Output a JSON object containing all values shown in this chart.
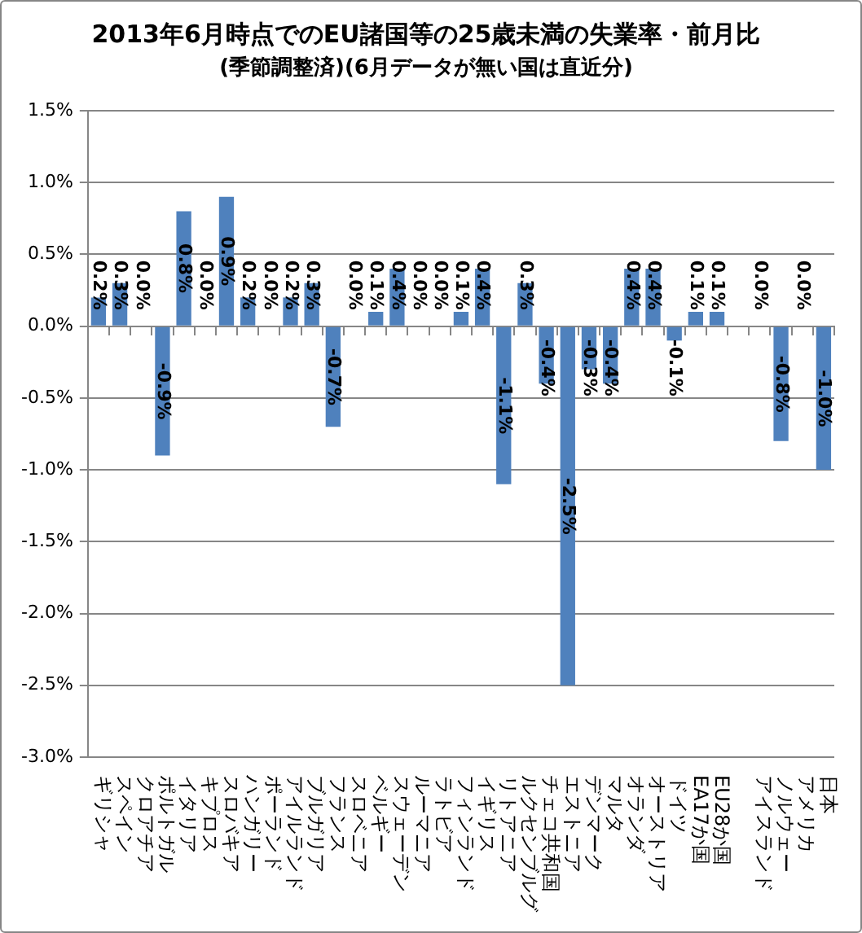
{
  "chart_data": {
    "type": "bar",
    "title": "2013年6月時点でのEU諸国等の25歳未満の失業率・前月比",
    "subtitle": "(季節調整済)(6月データが無い国は直近分)",
    "categories": [
      "ギリシャ",
      "スペイン",
      "クロアチア",
      "ポルトガル",
      "イタリア",
      "キプロス",
      "スロバキア",
      "ハンガリー",
      "ポーランド",
      "アイルランド",
      "ブルガリア",
      "フランス",
      "スロベニア",
      "ベルギー",
      "スウェーデン",
      "ルーマニア",
      "ラトビア",
      "フィンランド",
      "イギリス",
      "リトアニア",
      "ルクセンブルグ",
      "チェコ共和国",
      "エストニア",
      "デンマーク",
      "マルタ",
      "オランダ",
      "オーストリア",
      "ドイツ",
      "EA17か国",
      "EU28か国",
      null,
      "アイスランド",
      "ノルウェー",
      "アメリカ",
      "日本"
    ],
    "values": [
      0.2,
      0.3,
      0.0,
      -0.9,
      0.8,
      0.0,
      0.9,
      0.2,
      0.0,
      0.2,
      0.3,
      -0.7,
      0.0,
      0.1,
      0.4,
      0.0,
      0.0,
      0.1,
      0.4,
      -1.1,
      0.3,
      -0.4,
      -2.5,
      -0.3,
      -0.4,
      0.4,
      0.4,
      -0.1,
      0.1,
      0.1,
      null,
      0.0,
      -0.8,
      0.0,
      -1.0
    ],
    "value_labels": [
      "0.2%",
      "0.3%",
      "0.0%",
      "-0.9%",
      "0.8%",
      "0.0%",
      "0.9%",
      "0.2%",
      "0.0%",
      "0.2%",
      "0.3%",
      "-0.7%",
      "0.0%",
      "0.1%",
      "0.4%",
      "0.0%",
      "0.0%",
      "0.1%",
      "0.4%",
      "-1.1%",
      "0.3%",
      "-0.4%",
      "-2.5%",
      "-0.3%",
      "-0.4%",
      "0.4%",
      "0.4%",
      "-0.1%",
      "0.1%",
      "0.1%",
      null,
      "0.0%",
      "-0.8%",
      "0.0%",
      "-1.0%"
    ],
    "color": "#4f81bd",
    "ylim": [
      -3.0,
      1.5
    ],
    "yticks": [
      {
        "value": -3.0,
        "label": "-3.0%"
      },
      {
        "value": -2.5,
        "label": "-2.5%"
      },
      {
        "value": -2.0,
        "label": "-2.0%"
      },
      {
        "value": -1.5,
        "label": "-1.5%"
      },
      {
        "value": -1.0,
        "label": "-1.0%"
      },
      {
        "value": -0.5,
        "label": "-0.5%"
      },
      {
        "value": 0.0,
        "label": "0.0%"
      },
      {
        "value": 0.5,
        "label": "0.5%"
      },
      {
        "value": 1.0,
        "label": "1.0%"
      },
      {
        "value": 1.5,
        "label": "1.5%"
      }
    ],
    "grid": "y"
  }
}
